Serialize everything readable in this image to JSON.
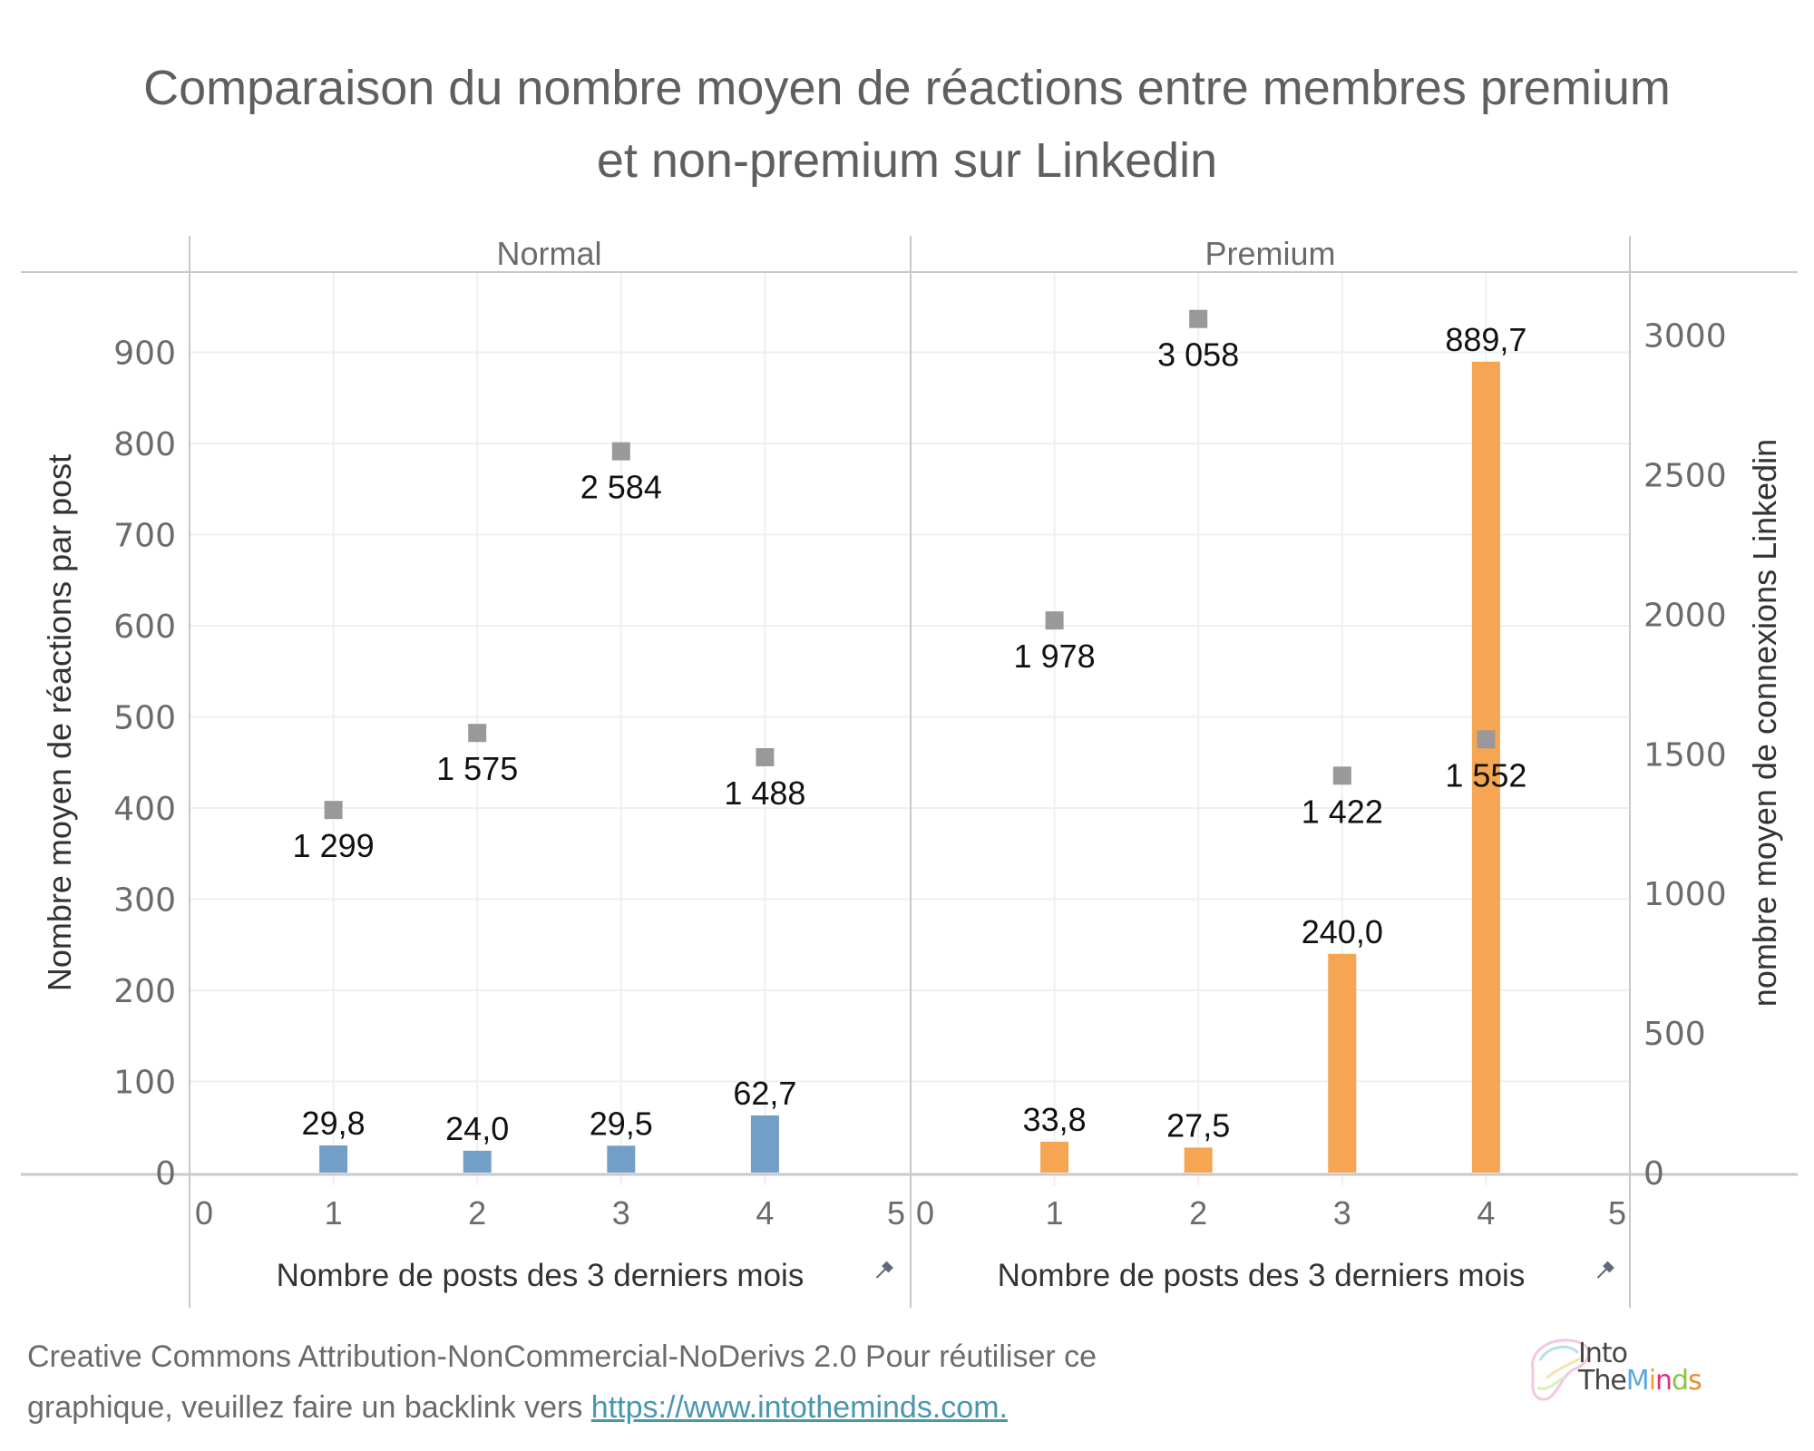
{
  "title_line1": "Comparaison du nombre moyen de réactions entre membres premium",
  "title_line2": "et non-premium sur Linkedin",
  "footer": {
    "line1": "Creative Commons Attribution-NonCommercial-NoDerivs 2.0 Pour réutiliser ce",
    "line2_prefix": "graphique, veuillez faire un backlink vers ",
    "link_text": "https://www.intotheminds.com."
  },
  "logo": {
    "line1": "Into",
    "line2_a": "The",
    "line2_letters": [
      {
        "ch": "M",
        "color": "#5aa9dc"
      },
      {
        "ch": "i",
        "color": "#f0a030"
      },
      {
        "ch": "n",
        "color": "#e0307a"
      },
      {
        "ch": "d",
        "color": "#8cc43c"
      },
      {
        "ch": "s",
        "color": "#f08a30"
      }
    ]
  },
  "chart_data": {
    "type": "bar",
    "title": "Comparaison du nombre moyen de réactions entre membres premium et non-premium sur Linkedin",
    "panels": [
      {
        "name": "Normal",
        "bar_color": "#729fc7",
        "x": [
          1,
          2,
          3,
          4
        ],
        "bars": [
          29.8,
          24.0,
          29.5,
          62.7
        ],
        "bar_labels": [
          "29,8",
          "24,0",
          "29,5",
          "62,7"
        ],
        "points": [
          1299,
          1575,
          2584,
          1488
        ],
        "point_labels": [
          "1 299",
          "1 575",
          "2 584",
          "1 488"
        ]
      },
      {
        "name": "Premium",
        "bar_color": "#f6a653",
        "x": [
          1,
          2,
          3,
          4
        ],
        "bars": [
          33.8,
          27.5,
          240.0,
          889.7
        ],
        "bar_labels": [
          "33,8",
          "27,5",
          "240,0",
          "889,7"
        ],
        "points": [
          1978,
          3058,
          1422,
          1552
        ],
        "point_labels": [
          "1 978",
          "3 058",
          "1 422",
          "1 552"
        ]
      }
    ],
    "point_color": "#999999",
    "x_axis": {
      "label": "Nombre de posts des 3 derniers mois",
      "ticks": [
        0,
        1,
        2,
        3,
        4,
        5
      ],
      "range": [
        0,
        5
      ]
    },
    "y_left": {
      "label": "Nombre moyen de réactions par post",
      "ticks": [
        0,
        100,
        200,
        300,
        400,
        500,
        600,
        700,
        800,
        900
      ],
      "range": [
        0,
        988
      ]
    },
    "y_right": {
      "label": "nombre moyen de connexions Linkedin",
      "ticks": [
        0,
        500,
        1000,
        1500,
        2000,
        2500,
        3000
      ],
      "range": [
        0,
        3226
      ]
    },
    "grid": true,
    "legend": "none"
  }
}
